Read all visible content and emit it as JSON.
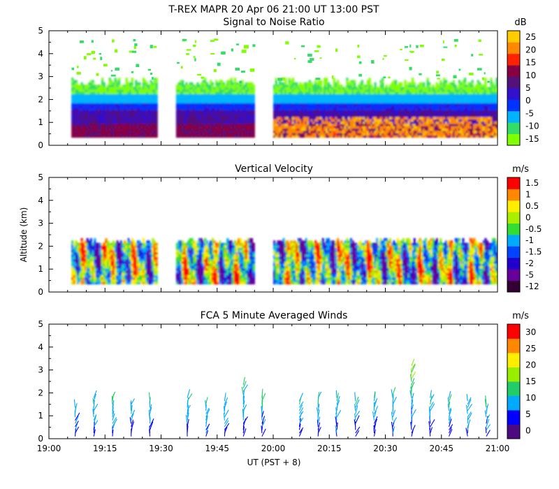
{
  "header": {
    "title": "T-REX  MAPR 20 Apr 06  21:00 UT  13:00  PST"
  },
  "xaxis": {
    "ticks": [
      "19:00",
      "19:15",
      "19:30",
      "19:45",
      "20:00",
      "20:15",
      "20:30",
      "20:45",
      "21:00"
    ],
    "label": "UT  (PST + 8)",
    "range_minutes": [
      0,
      120
    ]
  },
  "panels": [
    {
      "title": "Signal to Noise Ratio",
      "ylabel": "",
      "yticks": [
        "0",
        "1",
        "2",
        "3",
        "4",
        "5"
      ],
      "unit": "dB",
      "colorbar": [
        "-15",
        "-10",
        "-5",
        "0",
        "5",
        "10",
        "15",
        "20",
        "25"
      ]
    },
    {
      "title": "Vertical Velocity",
      "ylabel": "Altitude (km)",
      "yticks": [
        "0",
        "1",
        "2",
        "3",
        "4",
        "5"
      ],
      "unit": "m/s",
      "colorbar": [
        "-12",
        "-5",
        "-2",
        "-1.5",
        "-1",
        "-0.5",
        "0",
        "0.5",
        "1",
        "1.5"
      ]
    },
    {
      "title": "FCA 5 Minute Averaged Winds",
      "ylabel": "",
      "yticks": [
        "0",
        "1",
        "2",
        "3",
        "4",
        "5"
      ],
      "unit": "m/s",
      "colorbar": [
        "0",
        "5",
        "10",
        "15",
        "20",
        "25",
        "30"
      ]
    }
  ],
  "colors": {
    "snr_scale": [
      "#7fff00",
      "#33dd66",
      "#00b4ff",
      "#0033ff",
      "#3311cc",
      "#55117a",
      "#880044",
      "#ff2200",
      "#ff8800",
      "#ffcc00"
    ],
    "vel_scale": [
      "#330033",
      "#660099",
      "#2200cc",
      "#0044ff",
      "#00aaff",
      "#33dd33",
      "#aaee00",
      "#ffee00",
      "#ff8800",
      "#ff0000"
    ],
    "wind_scale": [
      "#4b0a80",
      "#0000ff",
      "#00aaff",
      "#22cc66",
      "#99ee00",
      "#ffee00",
      "#ff8800",
      "#ff0000"
    ]
  },
  "chart_data": [
    {
      "type": "heatmap",
      "title": "Signal to Noise Ratio",
      "xlabel": "UT  (PST + 8)",
      "ylabel": "",
      "x_range": [
        "19:00",
        "21:00"
      ],
      "ylim": [
        0,
        5
      ],
      "colorbar_unit": "dB",
      "colorbar_range": [
        -15,
        25
      ],
      "data_segments_minutes": [
        [
          6,
          29
        ],
        [
          34,
          55
        ],
        [
          60,
          120
        ]
      ],
      "layers_km": [
        {
          "from": 0.35,
          "to": 0.9,
          "snr_db": 10
        },
        {
          "from": 0.9,
          "to": 1.5,
          "snr_db": 5
        },
        {
          "from": 1.5,
          "to": 1.8,
          "snr_db": 0
        },
        {
          "from": 1.8,
          "to": 2.2,
          "snr_db": -5
        },
        {
          "from": 2.2,
          "to": 2.8,
          "snr_db": -12
        }
      ],
      "high_snr_region": {
        "minutes": [
          60,
          120
        ],
        "km": [
          0.35,
          1.2
        ],
        "snr_db": 20
      }
    },
    {
      "type": "heatmap",
      "title": "Vertical Velocity",
      "xlabel": "UT  (PST + 8)",
      "ylabel": "Altitude (km)",
      "x_range": [
        "19:00",
        "21:00"
      ],
      "ylim": [
        0,
        5
      ],
      "colorbar_unit": "m/s",
      "colorbar_range": [
        -12,
        1.5
      ],
      "data_segments_minutes": [
        [
          6,
          29
        ],
        [
          34,
          55
        ],
        [
          60,
          120
        ]
      ],
      "top_of_data_km": 2.2
    },
    {
      "type": "scatter",
      "title": "FCA 5 Minute Averaged Winds",
      "xlabel": "UT  (PST + 8)",
      "ylabel": "",
      "ylim": [
        0,
        5
      ],
      "colorbar_unit": "m/s",
      "colorbar_range": [
        0,
        30
      ],
      "profile_minutes": [
        7,
        12,
        17,
        22,
        27,
        37,
        42,
        47,
        52,
        57,
        67,
        72,
        77,
        82,
        87,
        92,
        97,
        102,
        107,
        112,
        117
      ],
      "profile_tops_km": [
        1.5,
        1.9,
        1.8,
        1.6,
        1.7,
        1.9,
        1.6,
        1.7,
        2.4,
        1.9,
        1.7,
        1.9,
        1.8,
        1.7,
        1.8,
        2.0,
        3.3,
        1.9,
        1.8,
        1.7,
        1.6
      ]
    }
  ]
}
